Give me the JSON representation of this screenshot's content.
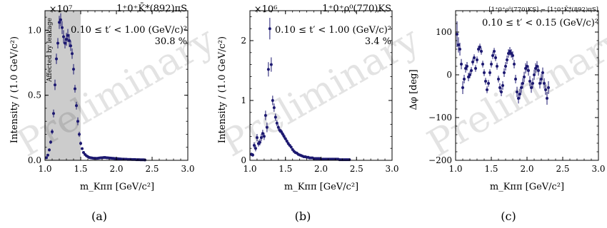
{
  "chart_data": [
    {
      "type": "scatter",
      "caption": "(a)",
      "title": "1⁺0⁺K̄*(892)πS",
      "multiplier": "×10⁷",
      "xlabel": "m_Kππ [GeV/c²]",
      "ylabel": "Intensity / (1.0 GeV/c²)",
      "xlim": [
        1.0,
        3.0
      ],
      "ylim": [
        0,
        1.15
      ],
      "xticks": [
        "1.0",
        "1.5",
        "2.0",
        "2.5",
        "3.0"
      ],
      "xtick_values": [
        1.0,
        1.5,
        2.0,
        2.5,
        3.0
      ],
      "yticks": [
        "0.0",
        "0.5",
        "1.0"
      ],
      "ytick_values": [
        0.0,
        0.5,
        1.0
      ],
      "annotations": [
        "0.10 ≤ t′ < 1.00 (GeV/c)²",
        "30.8 %"
      ],
      "shaded_region": {
        "x": [
          1.0,
          1.5
        ],
        "label": "Affected by leakage"
      },
      "watermark": "Preliminary",
      "series": [
        {
          "x": [
            1.02,
            1.04,
            1.06,
            1.08,
            1.1,
            1.12,
            1.14,
            1.16,
            1.18,
            1.2,
            1.22,
            1.24,
            1.26,
            1.28,
            1.3,
            1.32,
            1.34,
            1.36,
            1.38,
            1.4,
            1.42,
            1.44,
            1.46,
            1.48,
            1.5,
            1.52,
            1.54,
            1.56,
            1.58,
            1.6,
            1.62,
            1.64,
            1.66,
            1.68,
            1.7,
            1.72,
            1.74,
            1.76,
            1.78,
            1.8,
            1.82,
            1.84,
            1.86,
            1.88,
            1.9,
            1.92,
            1.94,
            1.96,
            1.98,
            2.0,
            2.02,
            2.04,
            2.06,
            2.08,
            2.1,
            2.12,
            2.14,
            2.16,
            2.18,
            2.2,
            2.22,
            2.24,
            2.26,
            2.28,
            2.3,
            2.32,
            2.34,
            2.36,
            2.38,
            2.4
          ],
          "y": [
            0.02,
            0.04,
            0.08,
            0.14,
            0.22,
            0.36,
            0.58,
            0.78,
            0.9,
            1.06,
            1.08,
            1.02,
            0.95,
            0.9,
            0.93,
            0.96,
            0.92,
            0.88,
            0.82,
            0.7,
            0.55,
            0.42,
            0.3,
            0.2,
            0.13,
            0.09,
            0.06,
            0.045,
            0.035,
            0.028,
            0.022,
            0.02,
            0.018,
            0.016,
            0.016,
            0.015,
            0.016,
            0.018,
            0.019,
            0.02,
            0.021,
            0.022,
            0.02,
            0.019,
            0.018,
            0.017,
            0.016,
            0.015,
            0.014,
            0.013,
            0.012,
            0.011,
            0.01,
            0.009,
            0.009,
            0.008,
            0.008,
            0.007,
            0.007,
            0.007,
            0.006,
            0.006,
            0.006,
            0.005,
            0.005,
            0.005,
            0.004,
            0.004,
            0.004,
            0.003
          ],
          "err": [
            0.005,
            0.008,
            0.012,
            0.015,
            0.02,
            0.03,
            0.04,
            0.04,
            0.04,
            0.05,
            0.05,
            0.05,
            0.05,
            0.04,
            0.05,
            0.05,
            0.05,
            0.04,
            0.04,
            0.04,
            0.03,
            0.03,
            0.03,
            0.02,
            0.015,
            0.01,
            0.008,
            0.006,
            0.005,
            0.004,
            0.004,
            0.003,
            0.003,
            0.003,
            0.003,
            0.003,
            0.003,
            0.003,
            0.003,
            0.003,
            0.003,
            0.003,
            0.003,
            0.003,
            0.003,
            0.003,
            0.002,
            0.002,
            0.002,
            0.002,
            0.002,
            0.002,
            0.002,
            0.002,
            0.002,
            0.002,
            0.002,
            0.002,
            0.002,
            0.002,
            0.002,
            0.002,
            0.002,
            0.002,
            0.002,
            0.002,
            0.002,
            0.002,
            0.002,
            0.002
          ]
        }
      ]
    },
    {
      "type": "scatter",
      "caption": "(b)",
      "title": "1⁺0⁺ρ⁰(770)KS",
      "multiplier": "×10⁶",
      "xlabel": "m_Kππ [GeV/c²]",
      "ylabel": "Intensity / (1.0 GeV/c²)",
      "xlim": [
        1.0,
        3.0
      ],
      "ylim": [
        0,
        2.5
      ],
      "xticks": [
        "1.0",
        "1.5",
        "2.0",
        "2.5",
        "3.0"
      ],
      "xtick_values": [
        1.0,
        1.5,
        2.0,
        2.5,
        3.0
      ],
      "yticks": [
        "0",
        "1",
        "2"
      ],
      "ytick_values": [
        0,
        1,
        2
      ],
      "annotations": [
        "0.10 ≤ t′ < 1.00 (GeV/c)²",
        "3.4 %"
      ],
      "watermark": "Preliminary",
      "series": [
        {
          "x": [
            1.02,
            1.04,
            1.06,
            1.08,
            1.1,
            1.12,
            1.14,
            1.16,
            1.18,
            1.2,
            1.22,
            1.24,
            1.26,
            1.28,
            1.3,
            1.32,
            1.34,
            1.36,
            1.38,
            1.4,
            1.42,
            1.44,
            1.46,
            1.48,
            1.5,
            1.52,
            1.54,
            1.56,
            1.58,
            1.6,
            1.62,
            1.64,
            1.66,
            1.68,
            1.7,
            1.72,
            1.74,
            1.76,
            1.78,
            1.8,
            1.82,
            1.84,
            1.86,
            1.88,
            1.9,
            1.92,
            1.94,
            1.96,
            1.98,
            2.0,
            2.02,
            2.04,
            2.06,
            2.08,
            2.1,
            2.12,
            2.14,
            2.16,
            2.18,
            2.2,
            2.22,
            2.24,
            2.26,
            2.28,
            2.3,
            2.32,
            2.34,
            2.36,
            2.38,
            2.4
          ],
          "y": [
            0.1,
            0.09,
            0.25,
            0.2,
            0.38,
            0.28,
            0.3,
            0.38,
            0.45,
            0.4,
            0.75,
            0.55,
            1.52,
            2.2,
            1.6,
            1.0,
            0.88,
            0.72,
            0.62,
            0.55,
            0.5,
            0.48,
            0.44,
            0.4,
            0.36,
            0.32,
            0.28,
            0.25,
            0.22,
            0.18,
            0.15,
            0.13,
            0.12,
            0.1,
            0.09,
            0.08,
            0.07,
            0.06,
            0.06,
            0.05,
            0.05,
            0.04,
            0.04,
            0.04,
            0.03,
            0.03,
            0.03,
            0.03,
            0.03,
            0.02,
            0.02,
            0.02,
            0.02,
            0.02,
            0.02,
            0.02,
            0.02,
            0.02,
            0.02,
            0.02,
            0.02,
            0.02,
            0.01,
            0.01,
            0.01,
            0.01,
            0.01,
            0.01,
            0.01,
            0.01
          ],
          "err": [
            0.03,
            0.03,
            0.05,
            0.05,
            0.06,
            0.05,
            0.05,
            0.06,
            0.06,
            0.06,
            0.08,
            0.08,
            0.12,
            0.18,
            0.12,
            0.08,
            0.07,
            0.06,
            0.05,
            0.05,
            0.04,
            0.04,
            0.04,
            0.04,
            0.03,
            0.03,
            0.03,
            0.02,
            0.02,
            0.02,
            0.02,
            0.02,
            0.02,
            0.01,
            0.01,
            0.01,
            0.01,
            0.01,
            0.01,
            0.01,
            0.01,
            0.01,
            0.01,
            0.01,
            0.01,
            0.01,
            0.01,
            0.01,
            0.01,
            0.01,
            0.01,
            0.01,
            0.01,
            0.01,
            0.01,
            0.01,
            0.01,
            0.01,
            0.01,
            0.01,
            0.01,
            0.01,
            0.01,
            0.01,
            0.01,
            0.01,
            0.01,
            0.01,
            0.01,
            0.01
          ]
        }
      ]
    },
    {
      "type": "scatter",
      "caption": "(c)",
      "title": "[1⁺0⁺ρ⁰(770)KS] − [1⁺0⁺K̄*(892)πS]",
      "xlabel": "m_Kππ [GeV/c²]",
      "ylabel": "Δφ [deg]",
      "xlim": [
        1.0,
        3.0
      ],
      "ylim": [
        -200,
        150
      ],
      "xticks": [
        "1.0",
        "1.5",
        "2.0",
        "2.5",
        "3.0"
      ],
      "xtick_values": [
        1.0,
        1.5,
        2.0,
        2.5,
        3.0
      ],
      "yticks": [
        "−200",
        "−100",
        "0",
        "100"
      ],
      "ytick_values": [
        -200,
        -100,
        0,
        100
      ],
      "annotations": [
        "0.10 ≤ t′ < 0.15 (GeV/c)²"
      ],
      "watermark": "Preliminary",
      "series": [
        {
          "x": [
            1.02,
            1.04,
            1.06,
            1.08,
            1.1,
            1.12,
            1.14,
            1.16,
            1.18,
            1.2,
            1.22,
            1.24,
            1.26,
            1.28,
            1.3,
            1.32,
            1.34,
            1.36,
            1.38,
            1.4,
            1.42,
            1.44,
            1.46,
            1.48,
            1.5,
            1.52,
            1.54,
            1.56,
            1.58,
            1.6,
            1.62,
            1.64,
            1.66,
            1.68,
            1.7,
            1.72,
            1.74,
            1.76,
            1.78,
            1.8,
            1.82,
            1.84,
            1.86,
            1.88,
            1.9,
            1.92,
            1.94,
            1.96,
            1.98,
            2.0,
            2.02,
            2.04,
            2.06,
            2.08,
            2.1,
            2.12,
            2.14,
            2.16,
            2.18,
            2.2,
            2.22,
            2.24,
            2.26,
            2.28,
            2.3
          ],
          "y": [
            95,
            70,
            60,
            25,
            -30,
            -10,
            15,
            20,
            -5,
            0,
            10,
            30,
            40,
            15,
            35,
            60,
            65,
            55,
            25,
            5,
            -15,
            -35,
            -20,
            5,
            25,
            45,
            55,
            40,
            20,
            -10,
            -30,
            -40,
            -25,
            5,
            20,
            35,
            50,
            55,
            50,
            45,
            25,
            -10,
            -40,
            -55,
            -45,
            -30,
            -20,
            -5,
            15,
            20,
            10,
            -15,
            -30,
            -20,
            0,
            15,
            20,
            10,
            -20,
            -10,
            5,
            -20,
            -35,
            -55,
            -30
          ],
          "err": [
            30,
            18,
            15,
            12,
            15,
            10,
            10,
            10,
            10,
            8,
            8,
            8,
            8,
            8,
            8,
            8,
            8,
            8,
            8,
            8,
            8,
            8,
            8,
            8,
            8,
            8,
            8,
            8,
            8,
            8,
            10,
            10,
            10,
            10,
            10,
            10,
            10,
            10,
            10,
            10,
            10,
            10,
            12,
            12,
            12,
            12,
            12,
            12,
            12,
            12,
            12,
            12,
            12,
            12,
            12,
            12,
            12,
            12,
            12,
            12,
            12,
            12,
            12,
            15,
            15
          ]
        }
      ]
    }
  ]
}
